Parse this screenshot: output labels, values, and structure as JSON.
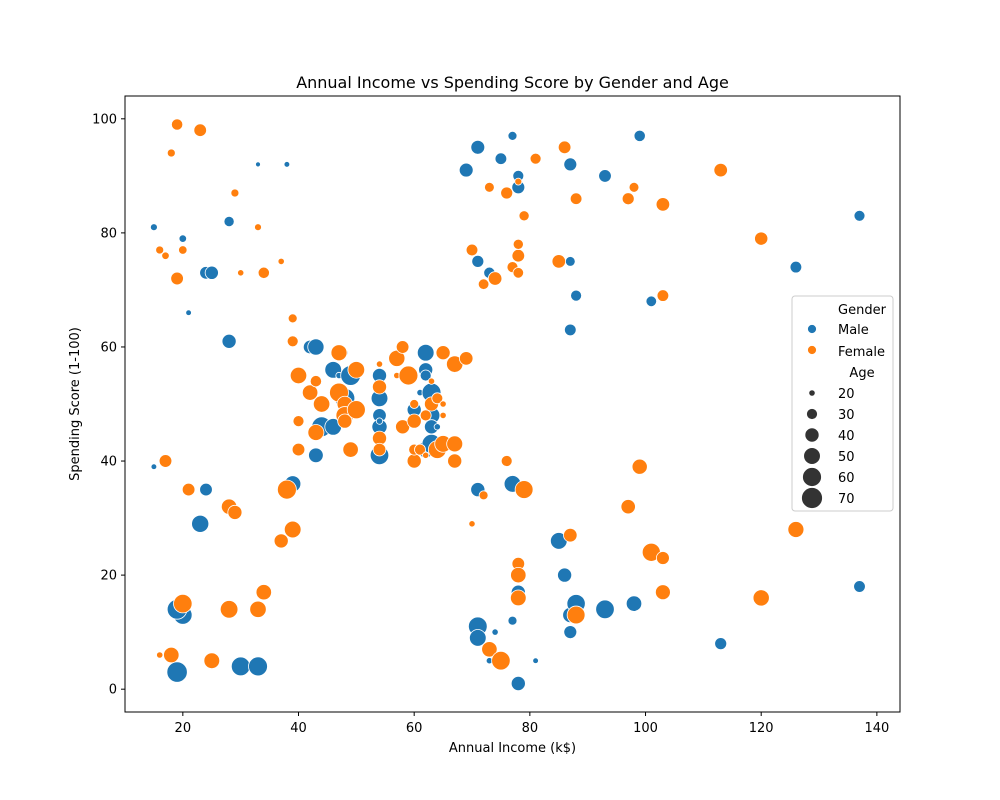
{
  "chart_data": {
    "type": "scatter",
    "title": "Annual Income vs Spending Score by Gender and Age",
    "xlabel": "Annual Income (k$)",
    "ylabel": "Spending Score (1-100)",
    "xlim": [
      10,
      144
    ],
    "ylim": [
      -4,
      104
    ],
    "xticks": [
      20,
      40,
      60,
      80,
      100,
      120,
      140
    ],
    "yticks": [
      0,
      20,
      40,
      60,
      80,
      100
    ],
    "grid": false,
    "legend": {
      "placement": "center-right",
      "hue_title": "Gender",
      "size_title": "Age",
      "size_levels": [
        20,
        30,
        40,
        50,
        60,
        70
      ]
    },
    "series": [
      {
        "name": "Male",
        "color": "#1f77b4",
        "points": [
          [
            15,
            81,
            21
          ],
          [
            15,
            39,
            19
          ],
          [
            20,
            79,
            22
          ],
          [
            20,
            13,
            58
          ],
          [
            21,
            66,
            19
          ],
          [
            24,
            73,
            35
          ],
          [
            25,
            73,
            37
          ],
          [
            24,
            35,
            35
          ],
          [
            23,
            29,
            52
          ],
          [
            28,
            82,
            28
          ],
          [
            28,
            61,
            40
          ],
          [
            19,
            14,
            64
          ],
          [
            19,
            3,
            67
          ],
          [
            30,
            4,
            59
          ],
          [
            33,
            4,
            60
          ],
          [
            33,
            92,
            18
          ],
          [
            38,
            92,
            19
          ],
          [
            39,
            36,
            48
          ],
          [
            42,
            60,
            38
          ],
          [
            43,
            60,
            48
          ],
          [
            43,
            41,
            42
          ],
          [
            44,
            46,
            64
          ],
          [
            46,
            56,
            50
          ],
          [
            46,
            46,
            50
          ],
          [
            47,
            55,
            20
          ],
          [
            48,
            51,
            65
          ],
          [
            48,
            59,
            20
          ],
          [
            49,
            55,
            64
          ],
          [
            54,
            55,
            40
          ],
          [
            54,
            51,
            50
          ],
          [
            54,
            48,
            38
          ],
          [
            54,
            46,
            44
          ],
          [
            54,
            41,
            58
          ],
          [
            54,
            47,
            20
          ],
          [
            60,
            41,
            19
          ],
          [
            60,
            49,
            40
          ],
          [
            61,
            52,
            20
          ],
          [
            62,
            42,
            48
          ],
          [
            62,
            59,
            50
          ],
          [
            62,
            56,
            40
          ],
          [
            63,
            52,
            60
          ],
          [
            63,
            48,
            50
          ],
          [
            63,
            46,
            40
          ],
          [
            63,
            43,
            60
          ],
          [
            64,
            46,
            20
          ],
          [
            67,
            56,
            20
          ],
          [
            62,
            55,
            30
          ],
          [
            69,
            91,
            39
          ],
          [
            71,
            95,
            39
          ],
          [
            73,
            73,
            31
          ],
          [
            75,
            93,
            32
          ],
          [
            77,
            97,
            25
          ],
          [
            78,
            88,
            36
          ],
          [
            78,
            90,
            30
          ],
          [
            71,
            75,
            33
          ],
          [
            71,
            35,
            40
          ],
          [
            77,
            36,
            50
          ],
          [
            71,
            11,
            59
          ],
          [
            71,
            9,
            50
          ],
          [
            74,
            10,
            20
          ],
          [
            73,
            5,
            20
          ],
          [
            77,
            12,
            25
          ],
          [
            78,
            1,
            40
          ],
          [
            78,
            17,
            40
          ],
          [
            81,
            5,
            19
          ],
          [
            85,
            26,
            50
          ],
          [
            86,
            20,
            40
          ],
          [
            87,
            13,
            44
          ],
          [
            87,
            10,
            36
          ],
          [
            88,
            15,
            57
          ],
          [
            87,
            63,
            32
          ],
          [
            87,
            75,
            27
          ],
          [
            88,
            69,
            30
          ],
          [
            87,
            92,
            36
          ],
          [
            93,
            90,
            35
          ],
          [
            93,
            14,
            58
          ],
          [
            98,
            15,
            45
          ],
          [
            99,
            97,
            31
          ],
          [
            101,
            68,
            29
          ],
          [
            113,
            8,
            33
          ],
          [
            126,
            74,
            32
          ],
          [
            137,
            83,
            30
          ],
          [
            137,
            18,
            32
          ]
        ]
      },
      {
        "name": "Female",
        "color": "#ff7f0e",
        "points": [
          [
            16,
            6,
            20
          ],
          [
            16,
            77,
            23
          ],
          [
            17,
            76,
            22
          ],
          [
            17,
            40,
            35
          ],
          [
            18,
            6,
            45
          ],
          [
            18,
            94,
            23
          ],
          [
            19,
            99,
            31
          ],
          [
            19,
            72,
            35
          ],
          [
            20,
            15,
            58
          ],
          [
            20,
            77,
            24
          ],
          [
            21,
            35,
            35
          ],
          [
            23,
            98,
            35
          ],
          [
            25,
            5,
            46
          ],
          [
            28,
            14,
            54
          ],
          [
            28,
            32,
            45
          ],
          [
            29,
            31,
            40
          ],
          [
            29,
            87,
            23
          ],
          [
            30,
            73,
            20
          ],
          [
            33,
            14,
            49
          ],
          [
            33,
            81,
            21
          ],
          [
            34,
            17,
            45
          ],
          [
            34,
            73,
            31
          ],
          [
            37,
            26,
            40
          ],
          [
            37,
            75,
            20
          ],
          [
            38,
            35,
            60
          ],
          [
            39,
            28,
            50
          ],
          [
            39,
            61,
            30
          ],
          [
            39,
            65,
            25
          ],
          [
            40,
            55,
            49
          ],
          [
            40,
            47,
            30
          ],
          [
            40,
            42,
            35
          ],
          [
            42,
            52,
            45
          ],
          [
            43,
            54,
            31
          ],
          [
            43,
            45,
            47
          ],
          [
            44,
            50,
            49
          ],
          [
            47,
            59,
            47
          ],
          [
            47,
            52,
            60
          ],
          [
            48,
            50,
            45
          ],
          [
            48,
            48,
            54
          ],
          [
            48,
            47,
            40
          ],
          [
            49,
            42,
            45
          ],
          [
            50,
            49,
            56
          ],
          [
            50,
            56,
            50
          ],
          [
            54,
            53,
            40
          ],
          [
            54,
            57,
            20
          ],
          [
            54,
            44,
            40
          ],
          [
            54,
            42,
            35
          ],
          [
            57,
            58,
            48
          ],
          [
            57,
            55,
            20
          ],
          [
            58,
            46,
            40
          ],
          [
            58,
            60,
            35
          ],
          [
            59,
            55,
            60
          ],
          [
            60,
            40,
            40
          ],
          [
            60,
            42,
            30
          ],
          [
            60,
            47,
            40
          ],
          [
            60,
            50,
            25
          ],
          [
            61,
            42,
            30
          ],
          [
            62,
            41,
            20
          ],
          [
            62,
            48,
            30
          ],
          [
            63,
            50,
            40
          ],
          [
            63,
            54,
            20
          ],
          [
            64,
            42,
            55
          ],
          [
            64,
            51,
            30
          ],
          [
            65,
            43,
            50
          ],
          [
            65,
            50,
            20
          ],
          [
            65,
            48,
            20
          ],
          [
            65,
            59,
            40
          ],
          [
            67,
            57,
            49
          ],
          [
            67,
            40,
            40
          ],
          [
            67,
            43,
            47
          ],
          [
            69,
            58,
            38
          ],
          [
            70,
            77,
            32
          ],
          [
            72,
            71,
            29
          ],
          [
            73,
            88,
            27
          ],
          [
            74,
            72,
            38
          ],
          [
            76,
            87,
            33
          ],
          [
            77,
            74,
            30
          ],
          [
            78,
            76,
            35
          ],
          [
            78,
            78,
            28
          ],
          [
            78,
            73,
            29
          ],
          [
            78,
            89,
            21
          ],
          [
            79,
            83,
            28
          ],
          [
            81,
            93,
            30
          ],
          [
            85,
            75,
            38
          ],
          [
            86,
            95,
            35
          ],
          [
            88,
            86,
            32
          ],
          [
            97,
            86,
            33
          ],
          [
            98,
            88,
            27
          ],
          [
            103,
            85,
            38
          ],
          [
            103,
            69,
            32
          ],
          [
            113,
            91,
            38
          ],
          [
            120,
            79,
            37
          ],
          [
            70,
            29,
            20
          ],
          [
            72,
            34,
            25
          ],
          [
            76,
            40,
            30
          ],
          [
            79,
            35,
            55
          ],
          [
            73,
            7,
            45
          ],
          [
            75,
            5,
            58
          ],
          [
            78,
            22,
            35
          ],
          [
            78,
            20,
            45
          ],
          [
            78,
            16,
            46
          ],
          [
            87,
            27,
            38
          ],
          [
            88,
            13,
            55
          ],
          [
            97,
            32,
            41
          ],
          [
            99,
            39,
            44
          ],
          [
            101,
            24,
            56
          ],
          [
            103,
            23,
            36
          ],
          [
            103,
            17,
            43
          ],
          [
            120,
            16,
            48
          ],
          [
            126,
            28,
            47
          ]
        ]
      }
    ]
  }
}
